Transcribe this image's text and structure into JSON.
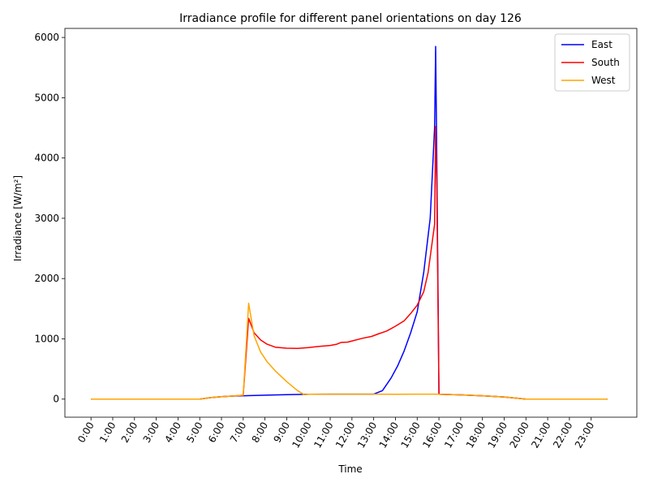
{
  "chart_data": {
    "type": "line",
    "title": "Irradiance profile for different panel orientations on day 126",
    "xlabel": "Time",
    "ylabel": "Irradiance [W/m²]",
    "xlim": [
      -1.2,
      25.1
    ],
    "ylim": [
      -300,
      6150
    ],
    "x_ticks": [
      "0:00",
      "1:00",
      "2:00",
      "3:00",
      "4:00",
      "5:00",
      "6:00",
      "7:00",
      "8:00",
      "9:00",
      "10:00",
      "11:00",
      "12:00",
      "13:00",
      "14:00",
      "15:00",
      "16:00",
      "17:00",
      "18:00",
      "19:00",
      "20:00",
      "21:00",
      "22:00",
      "23:00"
    ],
    "y_ticks": [
      0,
      1000,
      2000,
      3000,
      4000,
      5000,
      6000
    ],
    "grid": false,
    "legend_position": "top-right",
    "series": [
      {
        "name": "East",
        "color": "#0000ff",
        "points": [
          [
            0,
            0
          ],
          [
            1,
            0
          ],
          [
            2,
            0
          ],
          [
            3,
            0
          ],
          [
            4,
            0
          ],
          [
            5,
            0
          ],
          [
            5.5,
            25
          ],
          [
            6,
            40
          ],
          [
            6.5,
            50
          ],
          [
            7,
            55
          ],
          [
            8,
            65
          ],
          [
            9,
            75
          ],
          [
            10,
            80
          ],
          [
            11,
            82
          ],
          [
            12,
            83
          ],
          [
            13,
            83
          ],
          [
            13.4,
            140
          ],
          [
            13.8,
            350
          ],
          [
            14.1,
            550
          ],
          [
            14.4,
            800
          ],
          [
            14.7,
            1100
          ],
          [
            15,
            1450
          ],
          [
            15.3,
            2100
          ],
          [
            15.6,
            3000
          ],
          [
            15.8,
            4500
          ],
          [
            15.85,
            5850
          ],
          [
            15.9,
            4000
          ],
          [
            16,
            80
          ],
          [
            17,
            70
          ],
          [
            18,
            55
          ],
          [
            19,
            35
          ],
          [
            20,
            0
          ],
          [
            21,
            0
          ],
          [
            22,
            0
          ],
          [
            23,
            0
          ],
          [
            23.75,
            0
          ]
        ]
      },
      {
        "name": "South",
        "color": "#ff0000",
        "points": [
          [
            0,
            0
          ],
          [
            1,
            0
          ],
          [
            2,
            0
          ],
          [
            3,
            0
          ],
          [
            4,
            0
          ],
          [
            5,
            0
          ],
          [
            5.5,
            25
          ],
          [
            6,
            40
          ],
          [
            6.5,
            50
          ],
          [
            7,
            65
          ],
          [
            7.25,
            1340
          ],
          [
            7.5,
            1100
          ],
          [
            7.8,
            980
          ],
          [
            8.1,
            910
          ],
          [
            8.5,
            860
          ],
          [
            9,
            845
          ],
          [
            9.5,
            840
          ],
          [
            10,
            855
          ],
          [
            10.5,
            875
          ],
          [
            11,
            890
          ],
          [
            11.3,
            910
          ],
          [
            11.5,
            940
          ],
          [
            11.8,
            945
          ],
          [
            12,
            965
          ],
          [
            12.5,
            1010
          ],
          [
            12.9,
            1040
          ],
          [
            13.2,
            1080
          ],
          [
            13.6,
            1130
          ],
          [
            14,
            1210
          ],
          [
            14.4,
            1300
          ],
          [
            14.7,
            1420
          ],
          [
            15,
            1560
          ],
          [
            15.3,
            1780
          ],
          [
            15.5,
            2100
          ],
          [
            15.8,
            2900
          ],
          [
            15.85,
            4520
          ],
          [
            15.9,
            3500
          ],
          [
            16,
            80
          ],
          [
            17,
            70
          ],
          [
            18,
            55
          ],
          [
            19,
            35
          ],
          [
            20,
            0
          ],
          [
            21,
            0
          ],
          [
            22,
            0
          ],
          [
            23,
            0
          ],
          [
            23.75,
            0
          ]
        ]
      },
      {
        "name": "West",
        "color": "#ffa500",
        "points": [
          [
            0,
            0
          ],
          [
            1,
            0
          ],
          [
            2,
            0
          ],
          [
            3,
            0
          ],
          [
            4,
            0
          ],
          [
            5,
            0
          ],
          [
            5.5,
            25
          ],
          [
            6,
            40
          ],
          [
            6.5,
            50
          ],
          [
            7,
            65
          ],
          [
            7.25,
            1590
          ],
          [
            7.5,
            1050
          ],
          [
            7.8,
            780
          ],
          [
            8.1,
            620
          ],
          [
            8.5,
            460
          ],
          [
            9,
            290
          ],
          [
            9.5,
            140
          ],
          [
            9.8,
            75
          ],
          [
            10,
            80
          ],
          [
            11,
            82
          ],
          [
            12,
            83
          ],
          [
            13,
            83
          ],
          [
            14,
            80
          ],
          [
            15,
            82
          ],
          [
            15.9,
            82
          ],
          [
            16,
            80
          ],
          [
            17,
            70
          ],
          [
            18,
            55
          ],
          [
            19,
            35
          ],
          [
            20,
            0
          ],
          [
            21,
            0
          ],
          [
            22,
            0
          ],
          [
            23,
            0
          ],
          [
            23.75,
            0
          ]
        ]
      }
    ]
  }
}
